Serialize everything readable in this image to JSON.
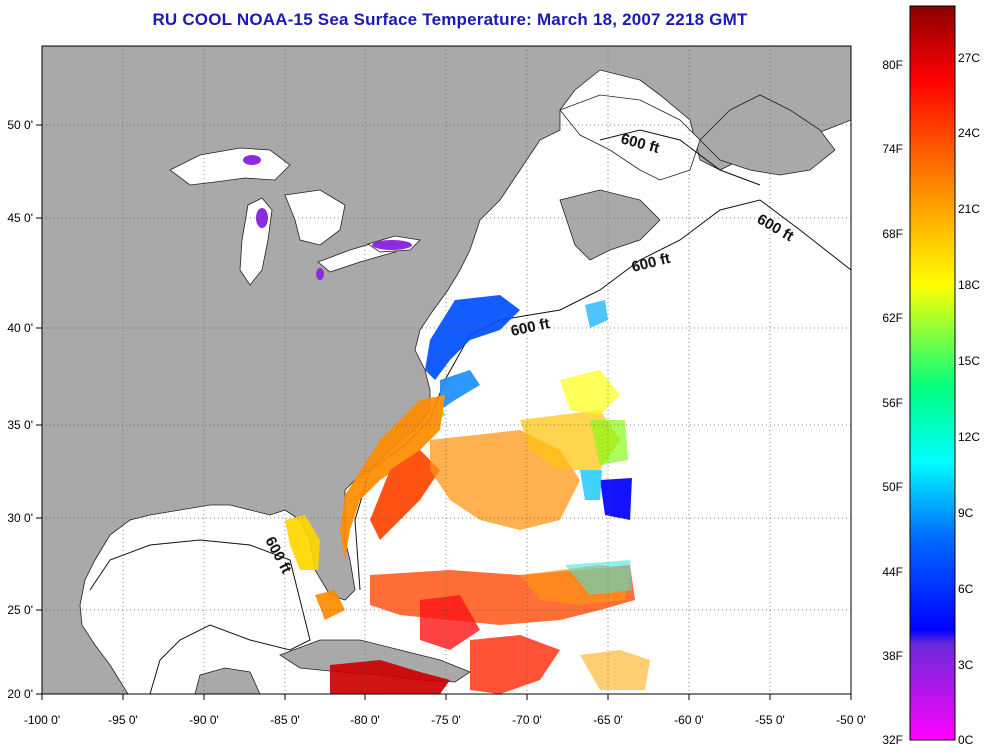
{
  "title": "RU COOL  NOAA-15  Sea Surface Temperature:  March 18, 2007 2218 GMT",
  "map": {
    "lon_ticks": [
      "-100 0'",
      "-95 0'",
      "-90 0'",
      "-85 0'",
      "-80 0'",
      "-75 0'",
      "-70 0'",
      "-65 0'",
      "-60 0'",
      "-55 0'",
      "-50 0'"
    ],
    "lat_ticks": [
      "50 0'",
      "45 0'",
      "40 0'",
      "35 0'",
      "30 0'",
      "25 0'",
      "20 0'"
    ],
    "contour_label": "600 ft",
    "colors": {
      "land": "#a9a9a9",
      "water": "#ffffff",
      "grid": "#555555"
    }
  },
  "colorbar": {
    "fahrenheit_labels": [
      "80F",
      "74F",
      "68F",
      "62F",
      "56F",
      "50F",
      "44F",
      "38F",
      "32F"
    ],
    "celsius_labels": [
      "27C",
      "24C",
      "21C",
      "18C",
      "15C",
      "12C",
      "9C",
      "6C",
      "3C",
      "0C"
    ],
    "stops": [
      "#8b0000",
      "#ff0000",
      "#ff8c00",
      "#ffff00",
      "#00ff80",
      "#00ffff",
      "#0070ff",
      "#0000ff",
      "#8a2be2",
      "#ff00ff"
    ]
  }
}
